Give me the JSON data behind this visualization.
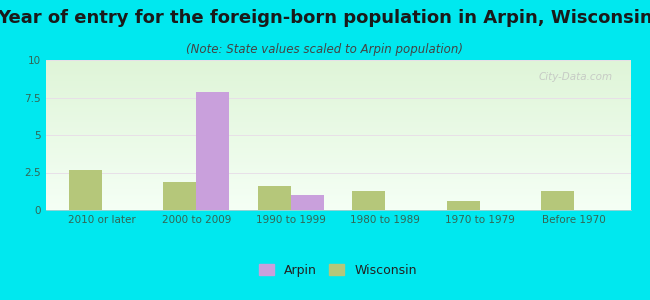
{
  "title": "Year of entry for the foreign-born population in Arpin, Wisconsin",
  "subtitle": "(Note: State values scaled to Arpin population)",
  "categories": [
    "2010 or later",
    "2000 to 2009",
    "1990 to 1999",
    "1980 to 1989",
    "1970 to 1979",
    "Before 1970"
  ],
  "arpin_values": [
    0,
    7.9,
    1.0,
    0,
    0,
    0
  ],
  "wisconsin_values": [
    2.7,
    1.9,
    1.6,
    1.3,
    0.6,
    1.3
  ],
  "arpin_color": "#c9a0dc",
  "wisconsin_color": "#b5c77a",
  "background_outer": "#00e8ef",
  "ylim": [
    0,
    10
  ],
  "yticks": [
    0,
    2.5,
    5,
    7.5,
    10
  ],
  "bar_width": 0.35,
  "watermark": "City-Data.com",
  "title_fontsize": 13,
  "subtitle_fontsize": 8.5,
  "tick_fontsize": 7.5,
  "legend_fontsize": 9
}
